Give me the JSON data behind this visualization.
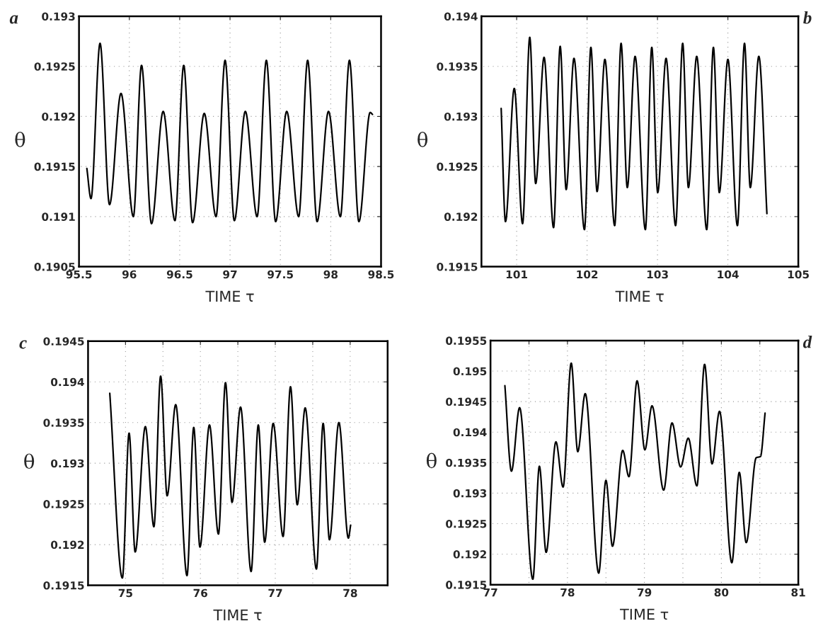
{
  "chart_data": [
    {
      "type": "line",
      "xlabel": "TIME τ",
      "ylabel": "θ",
      "annotations": [
        "a"
      ],
      "grid": true,
      "xlim": [
        95.5,
        98.5
      ],
      "xticks": [
        95.5,
        96,
        96.5,
        97,
        97.5,
        98,
        98.5
      ],
      "ylim": [
        0.1905,
        0.193
      ],
      "yticks": [
        0.1905,
        0.191,
        0.1915,
        0.192,
        0.1925,
        0.193
      ],
      "series": [
        {
          "color": "#000000",
          "x": [
            95.578,
            95.619,
            95.709,
            95.803,
            95.917,
            96.04,
            96.121,
            96.22,
            96.336,
            96.453,
            96.54,
            96.628,
            96.744,
            96.861,
            96.951,
            97.043,
            97.152,
            97.269,
            97.361,
            97.453,
            97.563,
            97.682,
            97.771,
            97.865,
            97.978,
            98.096,
            98.186,
            98.28,
            98.392,
            98.415
          ],
          "values": [
            0.19148,
            0.19118,
            0.19273,
            0.19112,
            0.19223,
            0.191,
            0.19251,
            0.19093,
            0.19205,
            0.19096,
            0.19251,
            0.19094,
            0.19203,
            0.191,
            0.19256,
            0.19096,
            0.19205,
            0.191,
            0.19256,
            0.19095,
            0.19205,
            0.191,
            0.19256,
            0.19095,
            0.19205,
            0.191,
            0.19256,
            0.19095,
            0.19204,
            0.19202
          ]
        }
      ]
    },
    {
      "type": "line",
      "xlabel": "TIME τ",
      "ylabel": "θ",
      "annotations": [
        "b"
      ],
      "grid": true,
      "xlim": [
        100.5,
        105
      ],
      "xticks": [
        101,
        102,
        103,
        104,
        105
      ],
      "ylim": [
        0.1915,
        0.194
      ],
      "yticks": [
        0.1915,
        0.192,
        0.1925,
        0.193,
        0.1935,
        0.194
      ],
      "series": [
        {
          "color": "#000000",
          "x": [
            100.78,
            100.841,
            100.966,
            101.084,
            101.186,
            101.27,
            101.389,
            101.524,
            101.618,
            101.703,
            101.814,
            101.963,
            102.054,
            102.142,
            102.253,
            102.392,
            102.483,
            102.571,
            102.682,
            102.828,
            102.919,
            103.003,
            103.122,
            103.257,
            103.358,
            103.439,
            103.557,
            103.699,
            103.794,
            103.878,
            104.0,
            104.135,
            104.236,
            104.318,
            104.439,
            104.554
          ],
          "values": [
            0.19308,
            0.19195,
            0.19328,
            0.19193,
            0.19379,
            0.19233,
            0.19359,
            0.19189,
            0.1937,
            0.19227,
            0.19358,
            0.19187,
            0.19369,
            0.19225,
            0.19357,
            0.19191,
            0.19373,
            0.19229,
            0.1936,
            0.19187,
            0.19369,
            0.19224,
            0.19358,
            0.19191,
            0.19373,
            0.19229,
            0.1936,
            0.19187,
            0.19369,
            0.19224,
            0.19357,
            0.19191,
            0.19373,
            0.19229,
            0.1936,
            0.19203
          ]
        }
      ]
    },
    {
      "type": "line",
      "xlabel": "TIME τ",
      "ylabel": "θ",
      "annotations": [
        "c"
      ],
      "grid": true,
      "xlim": [
        74.5,
        78.5
      ],
      "xticks": [
        {
          "value": 74.5,
          "label": null
        },
        75,
        {
          "value": 75.5,
          "label": null
        },
        76,
        {
          "value": 76.5,
          "label": null
        },
        77,
        {
          "value": 77.5,
          "label": null
        },
        78,
        {
          "value": 78.5,
          "label": null
        }
      ],
      "ylim": [
        0.1915,
        0.1945
      ],
      "yticks": [
        0.1915,
        0.192,
        0.1925,
        0.193,
        0.1935,
        0.194,
        0.1945
      ],
      "series": [
        {
          "color": "#000000",
          "x": [
            74.79,
            74.958,
            75.048,
            75.129,
            75.265,
            75.379,
            75.469,
            75.556,
            75.67,
            75.821,
            75.911,
            75.994,
            76.121,
            76.241,
            76.335,
            76.422,
            76.536,
            76.677,
            76.773,
            76.858,
            76.972,
            77.104,
            77.203,
            77.293,
            77.399,
            77.549,
            77.639,
            77.723,
            77.849,
            77.976,
            78.006
          ],
          "values": [
            0.19386,
            0.19159,
            0.19337,
            0.19191,
            0.19345,
            0.19222,
            0.19407,
            0.1926,
            0.19372,
            0.19162,
            0.19344,
            0.19197,
            0.19347,
            0.19213,
            0.19399,
            0.19252,
            0.19369,
            0.19167,
            0.19347,
            0.19203,
            0.19349,
            0.1921,
            0.19394,
            0.19249,
            0.19368,
            0.1917,
            0.19349,
            0.19206,
            0.1935,
            0.19208,
            0.19224
          ]
        }
      ]
    },
    {
      "type": "line",
      "xlabel": "TIME τ",
      "ylabel": "θ",
      "annotations": [
        "d"
      ],
      "grid": true,
      "xlim": [
        77,
        81
      ],
      "xticks": [
        77,
        {
          "value": 77.5,
          "label": null
        },
        78,
        {
          "value": 78.5,
          "label": null
        },
        79,
        {
          "value": 79.5,
          "label": null
        },
        80,
        {
          "value": 80.5,
          "label": null
        },
        81
      ],
      "ylim": [
        0.1915,
        0.1955
      ],
      "yticks": [
        0.1915,
        0.192,
        0.1925,
        0.193,
        0.1935,
        0.194,
        0.1945,
        0.195,
        0.1955
      ],
      "series": [
        {
          "color": "#000000",
          "x": [
            77.187,
            77.272,
            77.378,
            77.55,
            77.635,
            77.723,
            77.85,
            77.943,
            78.049,
            78.134,
            78.231,
            78.406,
            78.5,
            78.585,
            78.718,
            78.799,
            78.905,
            79.006,
            79.099,
            79.25,
            79.359,
            79.47,
            79.57,
            79.682,
            79.782,
            79.879,
            79.976,
            80.136,
            80.233,
            80.323,
            80.453,
            80.508,
            80.568
          ],
          "values": [
            0.19476,
            0.19336,
            0.1944,
            0.19159,
            0.19344,
            0.19203,
            0.19384,
            0.1931,
            0.19513,
            0.19368,
            0.19463,
            0.19169,
            0.19321,
            0.19213,
            0.1937,
            0.19327,
            0.19484,
            0.19371,
            0.19443,
            0.19305,
            0.19415,
            0.19343,
            0.1939,
            0.19312,
            0.19511,
            0.19348,
            0.19434,
            0.19186,
            0.19334,
            0.19219,
            0.19358,
            0.1936,
            0.19431
          ]
        }
      ]
    }
  ]
}
